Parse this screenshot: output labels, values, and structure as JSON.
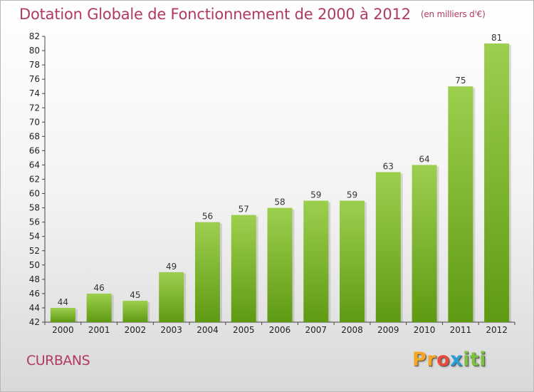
{
  "title": "Dotation Globale de Fonctionnement de 2000 à 2012",
  "unit": "(en milliers d'€)",
  "place": "CURBANS",
  "logo": {
    "p1": "Pr",
    "p2": "o",
    "p3": "x",
    "p4": "iti"
  },
  "colors": {
    "bar_top": "#9dcf4e",
    "bar_bottom": "#5f9a13",
    "title": "#b03a5e"
  },
  "chart_data": {
    "type": "bar",
    "categories": [
      "2000",
      "2001",
      "2002",
      "2003",
      "2004",
      "2005",
      "2006",
      "2007",
      "2008",
      "2009",
      "2010",
      "2011",
      "2012"
    ],
    "values": [
      44,
      46,
      45,
      49,
      56,
      57,
      58,
      59,
      59,
      63,
      64,
      75,
      81
    ],
    "ylim": [
      42,
      82
    ],
    "yticks": [
      42,
      44,
      46,
      48,
      50,
      52,
      54,
      56,
      58,
      60,
      62,
      64,
      66,
      68,
      70,
      72,
      74,
      76,
      78,
      80,
      82
    ],
    "grid": false,
    "legend": "none"
  }
}
